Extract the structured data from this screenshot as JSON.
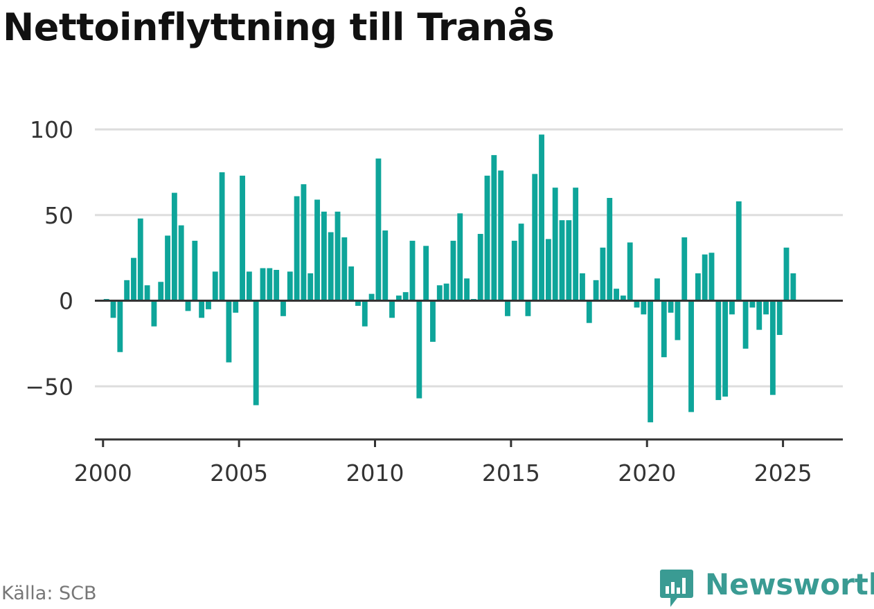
{
  "title": "Nettoinflyttning till Tranås",
  "source": "Källa: SCB",
  "brand": "Newsworthy",
  "colors": {
    "bar": "#0ea59a",
    "axis": "#333333",
    "grid": "#dddddd",
    "brand": "#3a9b93"
  },
  "icons": {
    "brand_logo": "newsworthy-logo-icon"
  },
  "chart_data": {
    "type": "bar",
    "title": "Nettoinflyttning till Tranås",
    "xlabel": "",
    "ylabel": "",
    "ylim": [
      -81,
      100
    ],
    "xlim": [
      1999.7,
      2027.2
    ],
    "grid": true,
    "yticks": [
      -50,
      0,
      50,
      100
    ],
    "ytick_labels": [
      "−50",
      "0",
      "50",
      "100"
    ],
    "xticks": [
      2000,
      2005,
      2010,
      2015,
      2020,
      2025
    ],
    "xtick_labels": [
      "2000",
      "2005",
      "2010",
      "2015",
      "2020",
      "2025"
    ],
    "x_start": 2000.125,
    "x_step": 0.25,
    "values": [
      1,
      -10,
      -30,
      12,
      25,
      48,
      9,
      -15,
      11,
      38,
      63,
      44,
      -6,
      35,
      -10,
      -5,
      17,
      75,
      -36,
      -7,
      73,
      17,
      -61,
      19,
      19,
      18,
      -9,
      17,
      61,
      68,
      16,
      59,
      52,
      40,
      52,
      37,
      20,
      -3,
      -15,
      4,
      83,
      41,
      -10,
      3,
      5,
      35,
      -57,
      32,
      -24,
      9,
      10,
      35,
      51,
      13,
      1,
      39,
      73,
      85,
      76,
      -9,
      35,
      45,
      -9,
      74,
      97,
      36,
      66,
      47,
      47,
      66,
      16,
      -13,
      12,
      31,
      60,
      7,
      3,
      34,
      -4,
      -8,
      -71,
      13,
      -33,
      -7,
      -23,
      37,
      -65,
      16,
      27,
      28,
      -58,
      -56,
      -8,
      58,
      -28,
      -4,
      -17,
      -8,
      -55,
      -20,
      31,
      16
    ]
  }
}
